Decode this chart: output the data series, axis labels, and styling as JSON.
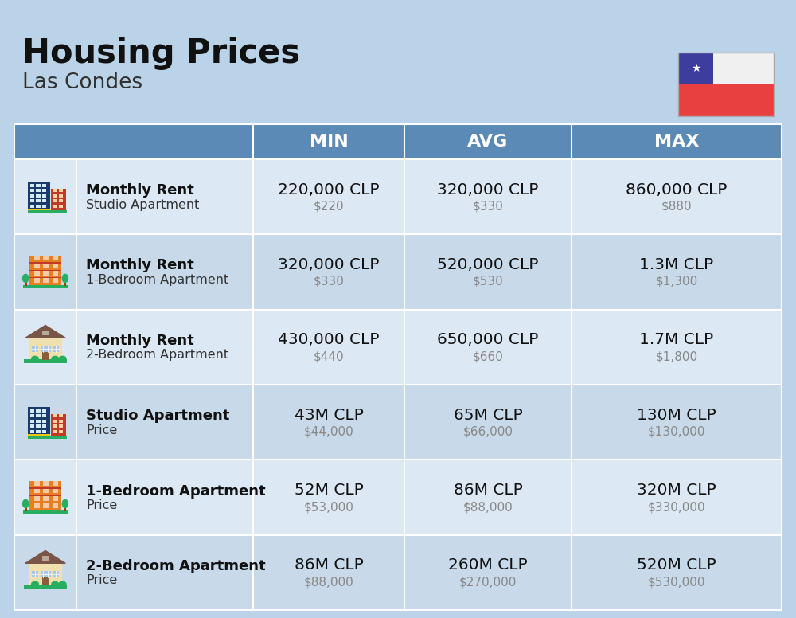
{
  "title": "Housing Prices",
  "subtitle": "Las Condes",
  "bg_color": "#bad3e8",
  "header_bg": "#5a8ab5",
  "header_text_color": "#ffffff",
  "row_colors": [
    "#dce8f4",
    "#c8d9ea"
  ],
  "col_headers": [
    "MIN",
    "AVG",
    "MAX"
  ],
  "rows": [
    {
      "bold_label": "Monthly Rent",
      "sub_label": "Studio Apartment",
      "icon_type": "building_blue_red",
      "min_main": "220,000 CLP",
      "min_sub": "$220",
      "avg_main": "320,000 CLP",
      "avg_sub": "$330",
      "max_main": "860,000 CLP",
      "max_sub": "$880"
    },
    {
      "bold_label": "Monthly Rent",
      "sub_label": "1-Bedroom Apartment",
      "icon_type": "building_orange",
      "min_main": "320,000 CLP",
      "min_sub": "$330",
      "avg_main": "520,000 CLP",
      "avg_sub": "$530",
      "max_main": "1.3M CLP",
      "max_sub": "$1,300"
    },
    {
      "bold_label": "Monthly Rent",
      "sub_label": "2-Bedroom Apartment",
      "icon_type": "house_beige",
      "min_main": "430,000 CLP",
      "min_sub": "$440",
      "avg_main": "650,000 CLP",
      "avg_sub": "$660",
      "max_main": "1.7M CLP",
      "max_sub": "$1,800"
    },
    {
      "bold_label": "Studio Apartment",
      "sub_label": "Price",
      "icon_type": "building_blue_red",
      "min_main": "43M CLP",
      "min_sub": "$44,000",
      "avg_main": "65M CLP",
      "avg_sub": "$66,000",
      "max_main": "130M CLP",
      "max_sub": "$130,000"
    },
    {
      "bold_label": "1-Bedroom Apartment",
      "sub_label": "Price",
      "icon_type": "building_orange",
      "min_main": "52M CLP",
      "min_sub": "$53,000",
      "avg_main": "86M CLP",
      "avg_sub": "$88,000",
      "max_main": "320M CLP",
      "max_sub": "$330,000"
    },
    {
      "bold_label": "2-Bedroom Apartment",
      "sub_label": "Price",
      "icon_type": "house_beige",
      "min_main": "86M CLP",
      "min_sub": "$88,000",
      "avg_main": "260M CLP",
      "avg_sub": "$270,000",
      "max_main": "520M CLP",
      "max_sub": "$530,000"
    }
  ],
  "flag_colors": {
    "blue": "#3d3d9e",
    "white": "#f0f0f0",
    "red": "#e84040"
  }
}
